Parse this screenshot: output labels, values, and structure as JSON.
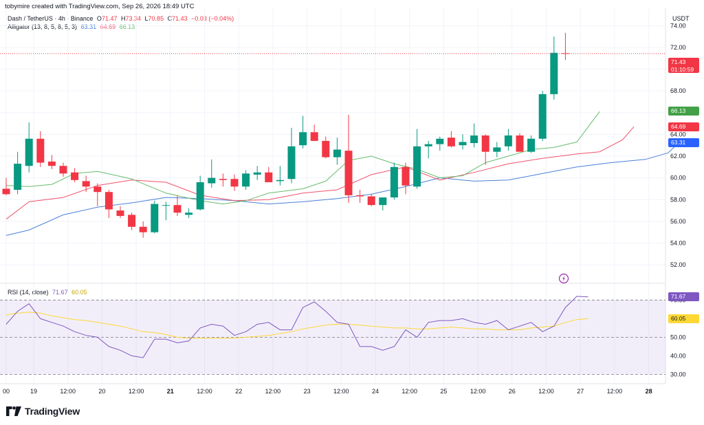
{
  "header": {
    "created_by": "tobymire created with TradingView.com, Sep 26, 2026 18:49 UTC"
  },
  "symbol": {
    "name": "Dash / TetherUS · 4h · Binance",
    "open_label": "O",
    "open": "71.47",
    "high_label": "H",
    "high": "73.34",
    "low_label": "L",
    "low": "70.85",
    "close_label": "C",
    "close": "71.43",
    "change": "−0.03 (−0.04%)"
  },
  "alligator": {
    "label": "Alligator (13, 8, 5, 8, 5, 3)",
    "jaw": "63.31",
    "teeth": "64.69",
    "lips": "66.13"
  },
  "rsi": {
    "label": "RSI (14, close)",
    "value": "71.67",
    "ma": "60.05"
  },
  "price_tag": {
    "price": "71.43",
    "countdown": "01:10:59"
  },
  "axis_unit": "USDT",
  "brand": "TradingView",
  "colors": {
    "up": "#089981",
    "down": "#f23645",
    "jaw": "#4a7fd8",
    "teeth": "#f0516b",
    "lips": "#66bb6a",
    "rsi": "#7e57c2",
    "rsi_ma": "#fdd835"
  },
  "chart_data": [
    {
      "type": "candlestick",
      "xaxis_ticks": [
        "00",
        "19",
        "12:00",
        "20",
        "12:00",
        "21",
        "12:00",
        "22",
        "12:00",
        "23",
        "12:00",
        "24",
        "12:00",
        "25",
        "12:00",
        "26",
        "12:00",
        "27",
        "12:00",
        "28"
      ],
      "yaxis_ticks": [
        "52.00",
        "54.00",
        "56.00",
        "58.00",
        "60.00",
        "62.00",
        "64.00",
        "66.00",
        "68.00",
        "70.00",
        "72.00",
        "74.00"
      ],
      "ylim": [
        50.3,
        75.6
      ],
      "ohlc": [
        [
          59.0,
          60.0,
          58.4,
          58.5
        ],
        [
          58.9,
          62.4,
          58.5,
          61.3
        ],
        [
          61.1,
          65.1,
          60.5,
          63.6
        ],
        [
          63.6,
          64.3,
          61.0,
          61.4
        ],
        [
          61.5,
          62.1,
          60.8,
          61.1
        ],
        [
          61.1,
          61.4,
          60.1,
          60.4
        ],
        [
          60.5,
          60.9,
          59.6,
          59.8
        ],
        [
          59.7,
          60.2,
          58.7,
          59.2
        ],
        [
          59.2,
          59.5,
          57.4,
          58.7
        ],
        [
          58.7,
          58.9,
          56.3,
          57.1
        ],
        [
          57.0,
          57.4,
          56.3,
          56.5
        ],
        [
          56.6,
          56.8,
          55.2,
          55.5
        ],
        [
          55.5,
          56.0,
          54.5,
          55.0
        ],
        [
          55.0,
          57.9,
          54.9,
          57.6
        ],
        [
          57.5,
          57.8,
          56.1,
          57.5
        ],
        [
          57.5,
          58.4,
          56.5,
          56.8
        ],
        [
          56.6,
          57.2,
          56.3,
          56.8
        ],
        [
          57.1,
          60.2,
          57.0,
          59.6
        ],
        [
          59.5,
          61.7,
          59.1,
          60.0
        ],
        [
          59.9,
          60.4,
          59.2,
          59.8
        ],
        [
          59.9,
          60.3,
          58.8,
          59.2
        ],
        [
          59.2,
          60.7,
          58.9,
          60.4
        ],
        [
          60.3,
          61.1,
          59.8,
          60.5
        ],
        [
          60.5,
          61.0,
          59.7,
          59.6
        ],
        [
          59.7,
          61.1,
          59.3,
          59.8
        ],
        [
          59.9,
          64.6,
          59.5,
          62.9
        ],
        [
          63.0,
          65.7,
          62.7,
          64.2
        ],
        [
          64.2,
          64.9,
          63.4,
          63.4
        ],
        [
          63.4,
          63.8,
          61.8,
          61.9
        ],
        [
          61.9,
          63.7,
          61.2,
          62.6
        ],
        [
          62.5,
          65.8,
          57.7,
          58.4
        ],
        [
          58.4,
          58.9,
          57.7,
          58.3
        ],
        [
          58.3,
          58.5,
          57.4,
          57.5
        ],
        [
          57.5,
          58.0,
          57.0,
          58.2
        ],
        [
          58.2,
          61.4,
          58.0,
          61.0
        ],
        [
          61.0,
          61.4,
          58.5,
          59.3
        ],
        [
          59.2,
          64.5,
          59.0,
          62.9
        ],
        [
          62.9,
          63.4,
          61.8,
          63.1
        ],
        [
          63.1,
          63.8,
          62.5,
          63.6
        ],
        [
          63.7,
          64.3,
          62.8,
          62.9
        ],
        [
          63.0,
          64.0,
          62.6,
          63.3
        ],
        [
          63.2,
          65.0,
          62.8,
          63.9
        ],
        [
          63.9,
          64.0,
          61.2,
          62.4
        ],
        [
          62.4,
          63.3,
          61.9,
          62.8
        ],
        [
          62.9,
          64.5,
          62.5,
          63.9
        ],
        [
          63.9,
          64.1,
          62.6,
          62.4
        ],
        [
          62.4,
          63.9,
          62.3,
          63.6
        ],
        [
          63.6,
          68.0,
          63.4,
          67.7
        ],
        [
          67.7,
          73.0,
          67.2,
          71.5
        ],
        [
          71.47,
          73.34,
          70.85,
          71.43
        ]
      ],
      "alligator_jaw": [
        [
          0,
          54.7
        ],
        [
          2,
          55.2
        ],
        [
          5,
          56.6
        ],
        [
          8,
          57.3
        ],
        [
          11,
          57.7
        ],
        [
          14,
          58.2
        ],
        [
          17,
          58.1
        ],
        [
          20,
          57.9
        ],
        [
          23,
          57.6
        ],
        [
          26,
          57.8
        ],
        [
          29,
          58.1
        ],
        [
          32,
          58.5
        ],
        [
          35,
          59.2
        ],
        [
          38,
          60.0
        ],
        [
          41,
          59.7
        ],
        [
          44,
          59.8
        ],
        [
          47,
          60.4
        ],
        [
          50,
          61.0
        ],
        [
          53,
          61.4
        ],
        [
          56,
          61.7
        ],
        [
          58,
          62.3
        ],
        [
          59,
          63.3
        ]
      ],
      "alligator_teeth": [
        [
          0,
          56.2
        ],
        [
          2,
          57.8
        ],
        [
          5,
          58.2
        ],
        [
          8,
          59.3
        ],
        [
          11,
          59.8
        ],
        [
          14,
          59.6
        ],
        [
          17,
          58.4
        ],
        [
          20,
          57.9
        ],
        [
          23,
          58.0
        ],
        [
          26,
          58.6
        ],
        [
          29,
          58.9
        ],
        [
          32,
          60.3
        ],
        [
          35,
          61.0
        ],
        [
          38,
          59.8
        ],
        [
          41,
          60.5
        ],
        [
          44,
          61.3
        ],
        [
          47,
          61.8
        ],
        [
          50,
          62.2
        ],
        [
          52,
          62.4
        ],
        [
          54,
          63.5
        ],
        [
          55,
          64.7
        ]
      ],
      "alligator_lips": [
        [
          0,
          59.3
        ],
        [
          2,
          59.2
        ],
        [
          4,
          59.4
        ],
        [
          6,
          60.4
        ],
        [
          8,
          60.6
        ],
        [
          11,
          59.9
        ],
        [
          14,
          58.6
        ],
        [
          17,
          57.9
        ],
        [
          19,
          57.6
        ],
        [
          21,
          57.9
        ],
        [
          23,
          58.6
        ],
        [
          26,
          59.0
        ],
        [
          28,
          59.7
        ],
        [
          30,
          61.6
        ],
        [
          32,
          62.0
        ],
        [
          34,
          61.3
        ],
        [
          36,
          60.8
        ],
        [
          38,
          60.0
        ],
        [
          40,
          60.2
        ],
        [
          42,
          61.4
        ],
        [
          44,
          62.0
        ],
        [
          46,
          62.6
        ],
        [
          48,
          62.8
        ],
        [
          50,
          63.3
        ],
        [
          52,
          66.1
        ]
      ]
    },
    {
      "type": "line",
      "series": [
        {
          "name": "RSI",
          "values": [
            57,
            64,
            68,
            60,
            58,
            56,
            53,
            51,
            50,
            45,
            43,
            40,
            39,
            49,
            49,
            47,
            48,
            55,
            57,
            56,
            51,
            53,
            57,
            58,
            54,
            54,
            66,
            69,
            64,
            58,
            57,
            45,
            45,
            43,
            45,
            54,
            50,
            58,
            59,
            59,
            60,
            58,
            57,
            59,
            54,
            56,
            58,
            53,
            56,
            66,
            72,
            71.67
          ]
        },
        {
          "name": "RSI MA",
          "values": [
            62,
            63,
            63.5,
            63,
            61.5,
            60.5,
            59.5,
            59,
            58,
            57,
            56,
            54.5,
            53,
            52.5,
            51.5,
            50,
            49.5,
            49.5,
            49.5,
            49.5,
            49.5,
            50,
            50.5,
            51,
            52,
            53,
            54.5,
            55.5,
            56.5,
            57,
            57,
            56.5,
            56,
            55.5,
            55,
            55,
            54.5,
            54.5,
            55,
            55.5,
            55,
            54.5,
            54.5,
            54,
            54,
            54,
            55,
            55.5,
            56,
            58,
            59.5,
            60.05
          ]
        }
      ],
      "yaxis_ticks": [
        "30.00",
        "40.00",
        "50.00",
        "60.00",
        "70.00"
      ],
      "ylim": [
        25,
        79
      ],
      "bands": [
        30,
        50,
        70
      ]
    }
  ]
}
